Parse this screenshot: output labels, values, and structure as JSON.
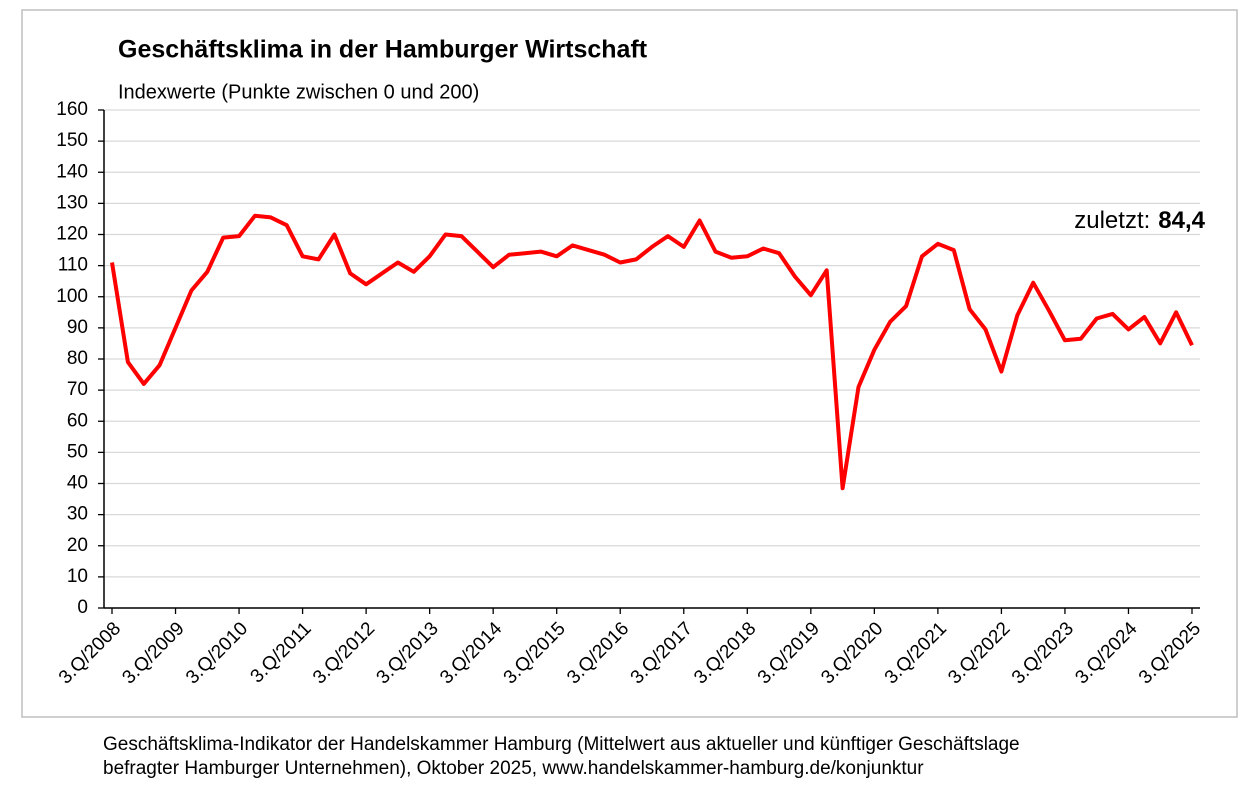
{
  "chart_data": {
    "type": "line",
    "title": "Geschäftsklima in der Hamburger Wirtschaft",
    "subtitle": "Indexwerte (Punkte zwischen 0 und 200)",
    "categories": [
      "3.Q/2008",
      null,
      null,
      null,
      "3.Q/2009",
      null,
      null,
      null,
      "3.Q/2010",
      null,
      null,
      null,
      "3.Q/2011",
      null,
      null,
      null,
      "3.Q/2012",
      null,
      null,
      null,
      "3.Q/2013",
      null,
      null,
      null,
      "3.Q/2014",
      null,
      null,
      null,
      "3.Q/2015",
      null,
      null,
      null,
      "3.Q/2016",
      null,
      null,
      null,
      "3.Q/2017",
      null,
      null,
      null,
      "3.Q/2018",
      null,
      null,
      null,
      "3.Q/2019",
      null,
      null,
      null,
      "3.Q/2020",
      null,
      null,
      null,
      "3.Q/2021",
      null,
      null,
      null,
      "3.Q/2022",
      null,
      null,
      null,
      "3.Q/2023",
      null,
      null,
      null,
      "3.Q/2024",
      null,
      null,
      null,
      "3.Q/2025"
    ],
    "values": [
      111,
      79,
      72,
      78,
      90,
      102,
      108,
      119,
      119.5,
      126,
      125.5,
      123,
      113,
      112,
      120,
      107.5,
      104,
      107.5,
      111,
      108,
      113,
      120,
      119.5,
      114.5,
      109.5,
      113.5,
      114,
      114.5,
      113,
      116.5,
      115,
      113.5,
      111,
      112,
      116,
      119.5,
      116,
      124.5,
      114.5,
      112.5,
      113,
      115.5,
      114,
      106.5,
      100.5,
      108.5,
      38.5,
      71,
      83,
      92,
      97,
      113,
      117,
      115,
      96,
      89.5,
      76,
      94,
      104.5,
      95.5,
      86,
      86.5,
      93,
      94.5,
      89.5,
      93.5,
      85,
      95,
      84.4
    ],
    "color": "#ff0000",
    "ylim": [
      0,
      160
    ],
    "yticks": [
      0,
      10,
      20,
      30,
      40,
      50,
      60,
      70,
      80,
      90,
      100,
      110,
      120,
      130,
      140,
      150,
      160
    ],
    "grid": true,
    "annotation": {
      "text": "zuletzt:",
      "value_label": "84,4"
    },
    "source": [
      "Geschäftsklima-Indikator der Handelskammer Hamburg (Mittelwert aus aktueller und künftiger Geschäftslage",
      "befragter Hamburger Unternehmen), Oktober 2025, www.handelskammer-hamburg.de/konjunktur"
    ]
  }
}
